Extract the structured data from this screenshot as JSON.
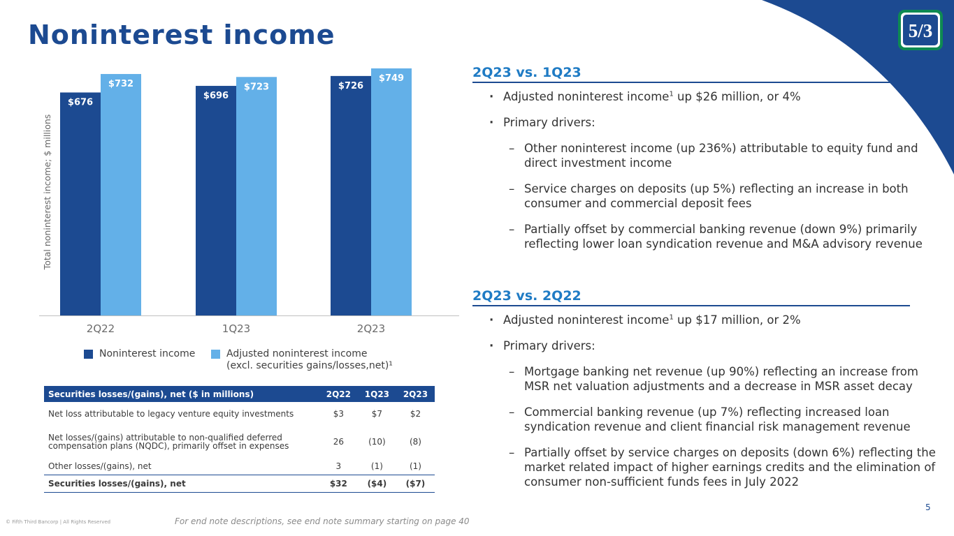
{
  "page": {
    "title": "Noninterest income",
    "page_number": "5",
    "copyright": "© Fifth Third Bancorp | All Rights Reserved",
    "end_note": "For end note descriptions, see end note summary starting on page 40"
  },
  "colors": {
    "primary": "#1c4a91",
    "secondary": "#63b0e8",
    "accent_heading": "#1f7bc4",
    "logo_green": "#0e8a52"
  },
  "chart_data": {
    "type": "bar",
    "ylabel": "Total noninterest income; $ millions",
    "categories": [
      "2Q22",
      "1Q23",
      "2Q23"
    ],
    "ylim": [
      0,
      749
    ],
    "series": [
      {
        "name": "Noninterest income",
        "color": "#1c4a91",
        "values": [
          676,
          696,
          726
        ],
        "labels": [
          "$676",
          "$696",
          "$726"
        ]
      },
      {
        "name": "Adjusted noninterest income (excl. securities gains/losses,net)¹",
        "color": "#63b0e8",
        "values": [
          732,
          723,
          749
        ],
        "labels": [
          "$732",
          "$723",
          "$749"
        ]
      }
    ],
    "legend": {
      "noninterest": "Noninterest income",
      "adjusted_line1": "Adjusted noninterest income",
      "adjusted_line2": "(excl. securities gains/losses,net)¹"
    }
  },
  "table": {
    "headers": [
      "Securities losses/(gains), net ($ in millions)",
      "2Q22",
      "1Q23",
      "2Q23"
    ],
    "rows": [
      [
        "Net loss attributable to legacy venture equity investments",
        "$3",
        "$7",
        "$2"
      ],
      [
        "Net losses/(gains) attributable to non-qualified deferred compensation plans (NQDC), primarily offset in expenses",
        "26",
        "(10)",
        "(8)"
      ],
      [
        "Other losses/(gains), net",
        "3",
        "(1)",
        "(1)"
      ]
    ],
    "total": [
      "Securities losses/(gains), net",
      "$32",
      "($4)",
      "($7)"
    ]
  },
  "sections": [
    {
      "heading": "2Q23 vs. 1Q23",
      "b1_pre": "Adjusted noninterest income",
      "b1_sup": "1",
      "b1_post": " up $26 million, or 4%",
      "b2": "Primary drivers:",
      "subs": [
        "Other noninterest income (up 236%) attributable to equity fund and direct investment income",
        "Service charges on deposits (up 5%) reflecting an increase in both consumer and commercial deposit fees",
        "Partially offset by commercial banking revenue (down 9%) primarily reflecting lower loan syndication revenue and M&A advisory revenue"
      ]
    },
    {
      "heading": "2Q23 vs. 2Q22",
      "b1_pre": "Adjusted noninterest income",
      "b1_sup": "1",
      "b1_post": " up $17 million, or 2%",
      "b2": "Primary drivers:",
      "subs": [
        "Mortgage banking net revenue (up 90%) reflecting an increase from MSR net valuation adjustments and a decrease in MSR asset decay",
        "Commercial banking revenue (up 7%) reflecting increased loan syndication revenue and client financial risk management revenue",
        "Partially offset by service charges on deposits (down 6%) reflecting the market related impact of higher earnings credits and the elimination of consumer non-sufficient funds fees in July 2022"
      ]
    }
  ],
  "logo": {
    "text": "5/3"
  }
}
